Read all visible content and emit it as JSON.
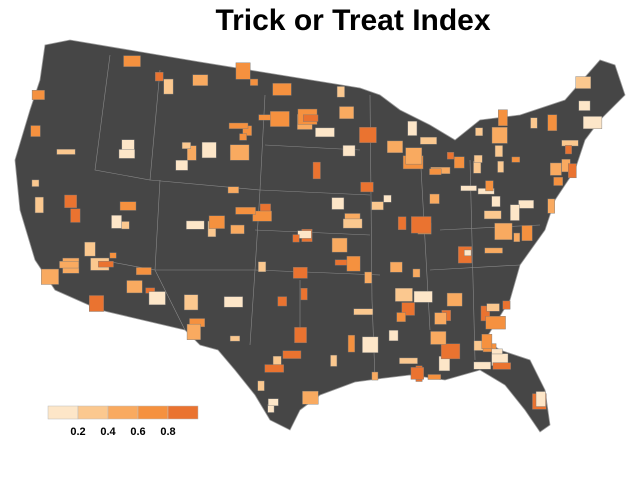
{
  "title": "Trick or Treat Index",
  "legend": {
    "colors": [
      "#fde6c8",
      "#fbc88f",
      "#f9aa60",
      "#f5913f",
      "#ea7330"
    ],
    "ticks": [
      0.2,
      0.4,
      0.6,
      0.8
    ]
  }
}
